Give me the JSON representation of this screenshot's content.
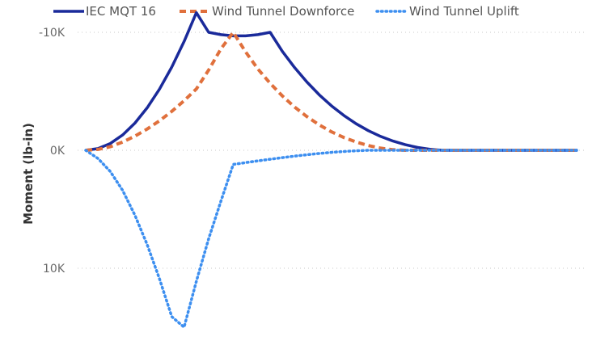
{
  "chart_data": {
    "type": "line",
    "title": "",
    "xlabel": "",
    "ylabel": "Moment (lb-in)",
    "y_inverted": true,
    "ylim": [
      -10000,
      15000
    ],
    "yticks": [
      {
        "value": -10000,
        "label": "-10K"
      },
      {
        "value": 0,
        "label": "0K"
      },
      {
        "value": 10000,
        "label": "10K"
      }
    ],
    "grid": true,
    "legend_position": "top",
    "x": [
      0,
      1,
      2,
      3,
      4,
      5,
      6,
      7,
      8,
      9,
      10,
      11,
      12,
      13,
      14,
      15,
      16,
      17,
      18,
      19,
      20,
      21,
      22,
      23,
      24,
      25,
      26,
      27,
      28,
      29,
      30,
      31,
      32,
      33,
      34,
      35,
      36,
      37,
      38,
      39,
      40
    ],
    "series": [
      {
        "name": "IEC MQT 16",
        "color": "#1a2a9a",
        "style": "solid",
        "values": [
          0,
          -144,
          -576,
          -1296,
          -2304,
          -3600,
          -5184,
          -7056,
          -9216,
          -11664,
          -10000,
          -9800,
          -9700,
          -9700,
          -9800,
          -10000,
          -8380,
          -7000,
          -5780,
          -4700,
          -3760,
          -2950,
          -2250,
          -1660,
          -1170,
          -780,
          -470,
          -240,
          -90,
          0,
          0,
          0,
          0,
          0,
          0,
          0,
          0,
          0,
          0,
          0,
          0
        ]
      },
      {
        "name": "Wind Tunnel Downforce",
        "color": "#e0703c",
        "style": "dashed",
        "values": [
          0,
          -75,
          -300,
          -700,
          -1200,
          -1800,
          -2500,
          -3300,
          -4200,
          -5200,
          -6800,
          -8600,
          -10000,
          -8350,
          -6900,
          -5680,
          -4600,
          -3660,
          -2850,
          -2150,
          -1560,
          -1080,
          -700,
          -400,
          -180,
          -50,
          0,
          0,
          0,
          0,
          0,
          0,
          0,
          0,
          0,
          0,
          0,
          0,
          0,
          0,
          0
        ]
      },
      {
        "name": "Wind Tunnel Uplift",
        "color": "#3d8ff0",
        "style": "dotted",
        "values": [
          0,
          700,
          1800,
          3400,
          5500,
          8000,
          10900,
          14100,
          15000,
          11100,
          7500,
          4300,
          1200,
          1050,
          900,
          760,
          620,
          490,
          380,
          270,
          180,
          100,
          40,
          0,
          0,
          0,
          0,
          0,
          0,
          0,
          0,
          0,
          0,
          0,
          0,
          0,
          0,
          0,
          0,
          0,
          0
        ]
      }
    ]
  }
}
